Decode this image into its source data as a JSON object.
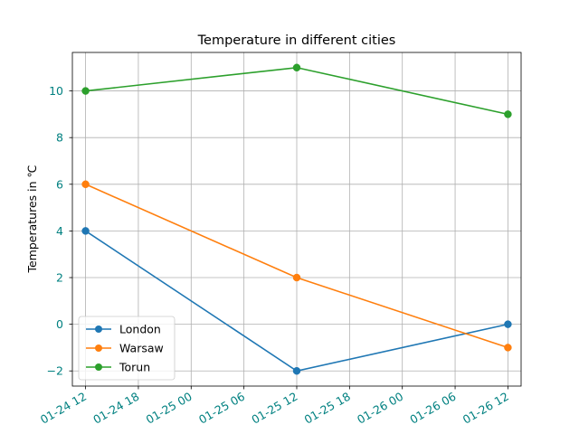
{
  "chart_data": {
    "type": "line",
    "title": "Temperature in different cities",
    "xlabel": "",
    "ylabel": "Temperatures in ℃",
    "x": [
      "2021-01-24 12:00",
      "2021-01-25 12:00",
      "2021-01-26 12:00"
    ],
    "series": [
      {
        "name": "London",
        "color": "#1f77b4",
        "values": [
          4,
          -2,
          0
        ]
      },
      {
        "name": "Warsaw",
        "color": "#ff7f0e",
        "values": [
          6,
          2,
          -1
        ]
      },
      {
        "name": "Torun",
        "color": "#2ca02c",
        "values": [
          10,
          11,
          9
        ]
      }
    ],
    "xticks": [
      "01-24 12",
      "01-24 18",
      "01-25 00",
      "01-25 06",
      "01-25 12",
      "01-25 18",
      "01-26 00",
      "01-26 06",
      "01-26 12"
    ],
    "xtick_values_hours": [
      0,
      6,
      12,
      18,
      24,
      30,
      36,
      42,
      48
    ],
    "xlim_hours": [
      -1.5,
      49.5
    ],
    "yticks": [
      "−2",
      "0",
      "2",
      "4",
      "6",
      "8",
      "10"
    ],
    "ytick_values": [
      -2,
      0,
      2,
      4,
      6,
      8,
      10
    ],
    "ylim": [
      -2.65,
      11.65
    ],
    "grid": true,
    "legend_position": "lower-left",
    "tick_label_color": "#008080",
    "x_tick_rotation": 30
  }
}
